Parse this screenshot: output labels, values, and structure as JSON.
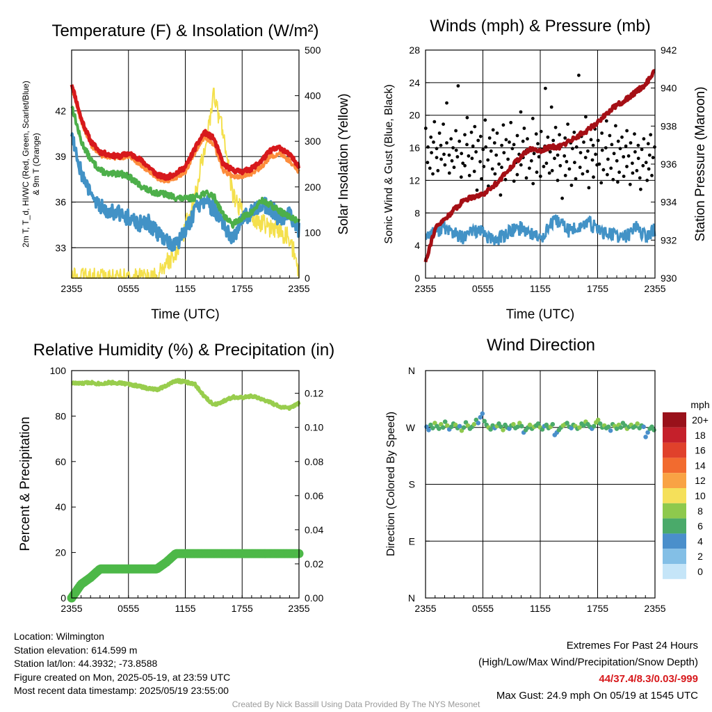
{
  "panels": {
    "temperature": {
      "title": "Temperature (F) & Insolation (W/m²)",
      "xlabel": "Time (UTC)",
      "ylabel_lines": [
        "2m T, T_d, HI/WC (Red, Green, Scarlet/Blue)",
        "& 9m T (Orange)"
      ],
      "ylabel_right": "Solar Insolation (Yellow)"
    },
    "wind": {
      "title": "Winds (mph) & Pressure (mb)",
      "xlabel": "Time (UTC)",
      "ylabel": "Sonic Wind & Gust (Blue, Black)",
      "ylabel_right": "Station Pressure (Maroon)"
    },
    "humidity": {
      "title": "Relative Humidity (%) & Precipitation (in)",
      "ylabel": "Percent & Precipitation"
    },
    "direction": {
      "title": "Wind Direction",
      "ylabel": "Direction (Colored By Speed)",
      "legend_title": "mph"
    }
  },
  "chart_data": [
    {
      "id": "temperature",
      "type": "line",
      "title": "Temperature (F) & Insolation (W/m²)",
      "xlabel": "Time (UTC)",
      "x_ticks": [
        "2355",
        "0555",
        "1155",
        "1755",
        "2355"
      ],
      "x_hours": [
        0,
        24
      ],
      "ylim": [
        31,
        46
      ],
      "y_ticks": [
        33,
        36,
        39,
        42
      ],
      "y2lim": [
        0,
        500
      ],
      "y2_ticks": [
        0,
        100,
        200,
        300,
        400,
        500
      ],
      "x": [
        0,
        1,
        2,
        3,
        4,
        5,
        6,
        7,
        8,
        9,
        10,
        11,
        12,
        13,
        14,
        15,
        16,
        17,
        18,
        19,
        20,
        21,
        22,
        23,
        24
      ],
      "series": [
        {
          "color": "#d7191c",
          "axis": "left",
          "values": [
            43.8,
            41.5,
            40.0,
            39.3,
            39.1,
            39.0,
            39.2,
            38.9,
            38.4,
            37.8,
            37.6,
            37.9,
            38.3,
            39.5,
            40.6,
            40.2,
            38.5,
            38.1,
            38.0,
            38.2,
            38.7,
            39.4,
            39.6,
            39.1,
            38.4
          ]
        },
        {
          "color": "#fd8d3c",
          "axis": "left",
          "values": [
            43.6,
            41.3,
            39.8,
            39.1,
            39.0,
            38.9,
            39.0,
            38.6,
            38.1,
            37.6,
            37.4,
            37.6,
            38.0,
            39.2,
            40.3,
            39.8,
            38.1,
            37.7,
            37.7,
            37.9,
            38.3,
            39.0,
            39.2,
            38.7,
            38.0
          ]
        },
        {
          "color": "#4daf4a",
          "axis": "left",
          "values": [
            42.4,
            40.0,
            38.8,
            38.1,
            37.8,
            37.9,
            37.7,
            37.2,
            36.8,
            36.6,
            36.5,
            36.3,
            36.2,
            36.3,
            36.6,
            36.4,
            35.2,
            34.5,
            35.0,
            35.3,
            36.1,
            35.8,
            35.4,
            35.0,
            34.8
          ]
        },
        {
          "color": "#4292c6",
          "axis": "left",
          "values": [
            40.6,
            38.0,
            36.5,
            35.7,
            35.5,
            35.3,
            35.0,
            34.5,
            34.7,
            34.0,
            33.5,
            33.2,
            34.1,
            35.4,
            36.0,
            35.6,
            34.6,
            33.4,
            34.8,
            35.4,
            36.0,
            35.6,
            34.9,
            35.1,
            34.2
          ]
        },
        {
          "color": "#f4e04d",
          "axis": "right",
          "values": [
            10,
            0,
            0,
            0,
            0,
            0,
            0,
            0,
            0,
            0,
            30,
            60,
            110,
            180,
            280,
            400,
            320,
            180,
            150,
            140,
            120,
            110,
            100,
            90,
            15
          ]
        }
      ]
    },
    {
      "id": "wind",
      "type": "line",
      "title": "Winds (mph) & Pressure (mb)",
      "xlabel": "Time (UTC)",
      "x_ticks": [
        "2355",
        "0555",
        "1155",
        "1755",
        "2355"
      ],
      "ylim": [
        0,
        28
      ],
      "y_ticks": [
        0,
        4,
        8,
        12,
        16,
        20,
        24,
        28
      ],
      "y2lim": [
        930,
        942
      ],
      "y2_ticks": [
        930,
        932,
        934,
        936,
        938,
        940,
        942
      ],
      "x": [
        0,
        1,
        2,
        3,
        4,
        5,
        6,
        7,
        8,
        9,
        10,
        11,
        12,
        13,
        14,
        15,
        16,
        17,
        18,
        19,
        20,
        21,
        22,
        23,
        24
      ],
      "series": [
        {
          "color": "#4292c6",
          "axis": "left",
          "values": [
            5.2,
            5.8,
            6.2,
            5.5,
            4.8,
            6.0,
            5.5,
            4.6,
            5.1,
            5.8,
            6.2,
            5.6,
            4.8,
            6.5,
            7.0,
            5.8,
            6.2,
            6.8,
            6.0,
            5.5,
            5.2,
            5.0,
            6.5,
            5.0,
            6.0
          ]
        },
        {
          "color": "#a50f15",
          "axis": "right",
          "values": [
            930.9,
            932.6,
            933.1,
            933.6,
            934.1,
            934.3,
            934.4,
            934.8,
            935.3,
            935.9,
            936.4,
            936.8,
            936.7,
            936.9,
            936.9,
            937.2,
            937.5,
            937.8,
            938.2,
            938.7,
            939.1,
            939.4,
            939.8,
            940.2,
            940.9
          ]
        }
      ],
      "gusts": [
        18.4,
        14.2,
        16.1,
        13.5,
        17.3,
        15.4,
        12.8,
        16.7,
        19.2,
        14.8,
        15.9,
        13.2,
        17.8,
        16.3,
        14.6,
        18.9,
        15.2,
        13.9,
        16.6,
        21.5,
        15.1,
        12.9,
        17.1,
        14.4,
        16.0,
        13.6,
        18.1,
        15.7,
        14.9,
        23.6,
        16.8,
        12.4,
        15.3,
        14.1,
        17.6,
        13.8,
        16.4,
        19.7,
        15.0,
        12.6,
        17.9,
        14.7,
        16.2,
        13.1,
        18.6,
        15.5,
        10.8,
        16.9,
        14.3,
        17.4,
        12.2,
        15.8,
        13.7,
        19.4,
        16.1,
        14.5,
        11.3,
        17.2,
        15.6,
        13.4,
        18.2,
        16.6,
        12.8,
        15.1,
        17.8,
        14.0,
        10.2,
        16.3,
        13.6,
        18.8,
        15.4,
        12.1,
        17.0,
        14.6,
        16.7,
        13.3,
        19.1,
        15.9,
        11.9,
        16.4,
        14.2,
        17.5,
        12.7,
        15.2,
        20.4,
        13.9,
        16.8,
        14.8,
        18.4,
        12.3,
        15.7,
        17.1,
        13.5,
        16.0,
        14.4,
        19.6,
        11.6,
        15.3,
        17.7,
        13.0,
        16.5,
        14.9,
        12.5,
        18.0,
        15.8,
        13.7,
        16.2,
        23.3,
        14.1,
        17.3,
        12.9,
        15.5,
        21.0,
        13.2,
        16.9,
        14.7,
        18.5,
        12.0,
        15.1,
        17.6,
        13.8,
        16.4,
        9.8,
        15.0,
        17.2,
        12.6,
        14.3,
        18.9,
        13.4,
        16.6,
        11.4,
        15.9,
        17.9,
        14.2,
        12.2,
        16.1,
        24.9,
        13.6,
        15.4,
        17.4,
        12.8,
        16.7,
        14.8,
        19.8,
        13.1,
        15.6,
        11.1,
        17.0,
        14.5,
        16.3,
        12.4,
        18.3,
        15.2,
        13.9,
        16.9,
        14.0,
        11.7,
        17.8,
        15.7,
        13.3,
        16.0,
        19.3,
        12.7,
        14.6,
        17.5,
        13.5,
        16.4,
        12.1,
        15.3,
        18.7,
        14.4,
        11.8,
        16.8,
        13.0,
        15.9,
        17.3,
        12.5,
        14.9,
        16.2,
        13.7,
        18.1,
        15.0,
        11.5,
        16.6,
        14.1,
        12.9,
        17.7,
        15.5,
        13.2,
        16.3,
        14.7,
        12.3,
        10.9,
        15.8,
        13.8,
        17.1,
        14.2,
        12.0,
        16.5,
        13.4,
        15.1,
        17.6,
        12.6,
        14.8,
        16.1
      ]
    },
    {
      "id": "humidity",
      "type": "line",
      "title": "Relative Humidity (%) & Precipitation (in)",
      "x_ticks": [
        "2355",
        "0555",
        "1155",
        "1755",
        "2355"
      ],
      "ylim": [
        0,
        100
      ],
      "y_ticks": [
        0,
        20,
        40,
        60,
        80,
        100
      ],
      "y2lim": [
        0,
        0.1333
      ],
      "y2_ticks": [
        "0.00",
        "0.02",
        "0.04",
        "0.06",
        "0.08",
        "0.10",
        "0.12"
      ],
      "x": [
        0,
        1,
        2,
        3,
        4,
        5,
        6,
        7,
        8,
        9,
        10,
        11,
        12,
        13,
        14,
        15,
        16,
        17,
        18,
        19,
        20,
        21,
        22,
        23,
        24
      ],
      "series": [
        {
          "color": "#98cd4d",
          "axis": "left",
          "name": "Relative Humidity",
          "values": [
            94.5,
            94.3,
            94.8,
            94.2,
            94.7,
            94.6,
            94.0,
            93.3,
            92.2,
            91.6,
            93.5,
            95.6,
            95.0,
            94.0,
            88.7,
            85.0,
            86.5,
            88.4,
            88.0,
            88.8,
            87.5,
            86.0,
            84.0,
            83.5,
            85.6
          ]
        },
        {
          "color": "#4db848",
          "axis": "right",
          "name": "Precipitation",
          "values": [
            0.0,
            0.008,
            0.012,
            0.017,
            0.017,
            0.017,
            0.017,
            0.017,
            0.017,
            0.017,
            0.021,
            0.026,
            0.026,
            0.026,
            0.026,
            0.026,
            0.026,
            0.026,
            0.026,
            0.026,
            0.026,
            0.026,
            0.026,
            0.026,
            0.026
          ]
        }
      ]
    },
    {
      "id": "direction",
      "type": "scatter",
      "title": "Wind Direction",
      "x_ticks": [
        "2355",
        "0555",
        "1155",
        "1755",
        "2355"
      ],
      "y_ticks": [
        "N",
        "E",
        "S",
        "W",
        "N"
      ],
      "ylim": [
        0,
        360
      ],
      "legend": {
        "title": "mph",
        "labels": [
          "20+",
          "18",
          "16",
          "14",
          "12",
          "10",
          "8",
          "6",
          "4",
          "2",
          "0"
        ],
        "colors": [
          "#99111a",
          "#c5202b",
          "#e0412b",
          "#f26b2f",
          "#f9a344",
          "#f5e05a",
          "#8ec94d",
          "#4aaa6a",
          "#4a8fcb",
          "#83bfe6",
          "#c5e5f8"
        ]
      },
      "directions": [
        271,
        266,
        274,
        269,
        277,
        272,
        268,
        275,
        270,
        279,
        273,
        267,
        271,
        276,
        274,
        269,
        272,
        265,
        270,
        278,
        273,
        268,
        271,
        275,
        282,
        277,
        286,
        292,
        280,
        274,
        270,
        267,
        273,
        269,
        272,
        276,
        271,
        266,
        274,
        270,
        268,
        273,
        275,
        269,
        271,
        277,
        272,
        262,
        266,
        270,
        274,
        268,
        271,
        273,
        276,
        270,
        267,
        272,
        274,
        269,
        271,
        275,
        258,
        262,
        266,
        270,
        273,
        275,
        277,
        271,
        269,
        274,
        272,
        268,
        270,
        276,
        273,
        279,
        275,
        271,
        268,
        272,
        278,
        282,
        276,
        270,
        273,
        269,
        271,
        265,
        275,
        272,
        268,
        274,
        270,
        277,
        273,
        268,
        271,
        274,
        270,
        272,
        276,
        269,
        273,
        271,
        255,
        262,
        268,
        271,
        266
      ],
      "dir_speeds": [
        4,
        4,
        6,
        5,
        7,
        6,
        5,
        8,
        6,
        5,
        7,
        4,
        6,
        5,
        8,
        6,
        4,
        7,
        5,
        6,
        8,
        6,
        5,
        7,
        5,
        4,
        4,
        4,
        5,
        6,
        7,
        5,
        6,
        4,
        8,
        6,
        5,
        7,
        6,
        5,
        4,
        6,
        7,
        5,
        6,
        8,
        5,
        4,
        5,
        6,
        7,
        5,
        8,
        6,
        5,
        7,
        6,
        4,
        5,
        6,
        7,
        5,
        4,
        4,
        5,
        6,
        8,
        7,
        6,
        5,
        4,
        6,
        7,
        5,
        8,
        6,
        5,
        7,
        6,
        5,
        4,
        6,
        7,
        8,
        6,
        5,
        7,
        6,
        5,
        4,
        6,
        8,
        5,
        7,
        6,
        5,
        6,
        7,
        5,
        8,
        6,
        5,
        7,
        6,
        5,
        4,
        4,
        4,
        5,
        6,
        5
      ]
    }
  ],
  "info_left": {
    "location": "Location: Wilmington",
    "elevation": "Station elevation: 614.599 m",
    "latlon": "Station lat/lon: 44.3932; -73.8588",
    "created": "Figure created on Mon, 2025-05-19, at 23:59 UTC",
    "recent": "Most recent data timestamp: 2025/05/19 23:55:00"
  },
  "info_right": {
    "heading": "Extremes For Past 24 Hours",
    "subheading": "(High/Low/Max Wind/Precipitation/Snow Depth)",
    "values": "44/37.4/8.3/0.03/-999",
    "max_gust": "Max Gust: 24.9 mph On 05/19 at 1545 UTC"
  },
  "credit": "Created By Nick Bassill Using Data Provided By The NYS Mesonet",
  "colors": {
    "red": "#d7191c",
    "orange": "#fd8d3c",
    "green": "#4daf4a",
    "blue": "#4292c6",
    "yellow": "#f4e04d",
    "maroon": "#a50f15",
    "rh_green": "#98cd4d",
    "precip_green": "#4db848",
    "extremes_red": "#d7191c",
    "credit_gray": "#9a9a9a"
  }
}
